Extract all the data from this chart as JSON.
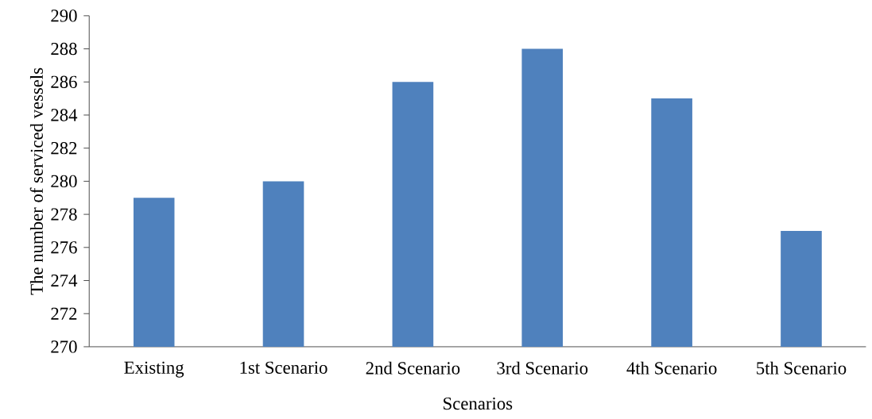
{
  "chart_data": {
    "type": "bar",
    "xlabel": "Scenarios",
    "ylabel": "The number of serviced vessels",
    "categories": [
      "Existing",
      "1st Scenario",
      "2nd Scenario",
      "3rd Scenario",
      "4th Scenario",
      "5th Scenario"
    ],
    "values": [
      279,
      280,
      286,
      288,
      285,
      277
    ],
    "color": "#4f81bd",
    "ylim": [
      270,
      290
    ],
    "yticks": [
      270,
      272,
      274,
      276,
      278,
      280,
      282,
      284,
      286,
      288,
      290
    ],
    "grid": false
  }
}
